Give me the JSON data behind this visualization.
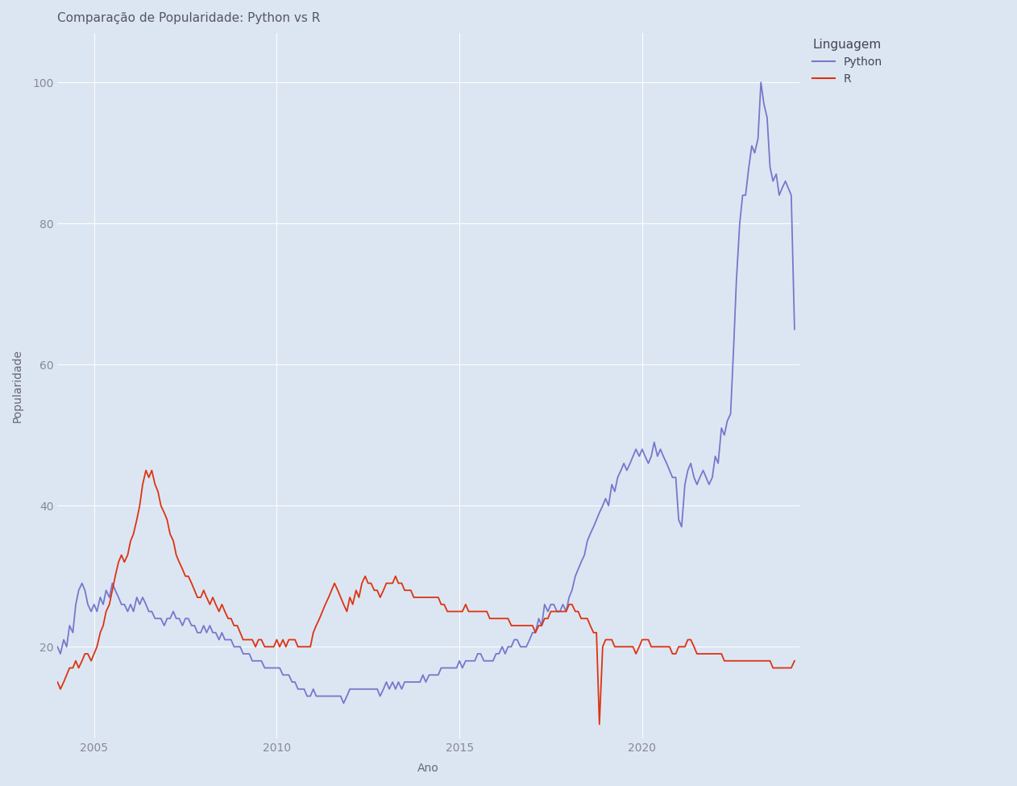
{
  "title": "Comparação de Popularidade: Python vs R",
  "xlabel": "Ano",
  "ylabel": "Popularidade",
  "legend_title": "Linguagem",
  "plot_bg_color": "#dce6f2",
  "fig_bg_color": "#dce6f2",
  "python_color": "#7777cc",
  "r_color": "#dd3311",
  "xlim": [
    2004.0,
    2024.3
  ],
  "ylim": [
    7,
    107
  ],
  "xticks": [
    2005,
    2010,
    2015,
    2020
  ],
  "yticks": [
    20,
    40,
    60,
    80,
    100
  ],
  "python_data": [
    [
      2004.0,
      20
    ],
    [
      2004.08,
      19
    ],
    [
      2004.17,
      21
    ],
    [
      2004.25,
      20
    ],
    [
      2004.33,
      23
    ],
    [
      2004.42,
      22
    ],
    [
      2004.5,
      26
    ],
    [
      2004.58,
      28
    ],
    [
      2004.67,
      29
    ],
    [
      2004.75,
      28
    ],
    [
      2004.83,
      26
    ],
    [
      2004.92,
      25
    ],
    [
      2005.0,
      26
    ],
    [
      2005.08,
      25
    ],
    [
      2005.17,
      27
    ],
    [
      2005.25,
      26
    ],
    [
      2005.33,
      28
    ],
    [
      2005.42,
      27
    ],
    [
      2005.5,
      29
    ],
    [
      2005.58,
      28
    ],
    [
      2005.67,
      27
    ],
    [
      2005.75,
      26
    ],
    [
      2005.83,
      26
    ],
    [
      2005.92,
      25
    ],
    [
      2006.0,
      26
    ],
    [
      2006.08,
      25
    ],
    [
      2006.17,
      27
    ],
    [
      2006.25,
      26
    ],
    [
      2006.33,
      27
    ],
    [
      2006.42,
      26
    ],
    [
      2006.5,
      25
    ],
    [
      2006.58,
      25
    ],
    [
      2006.67,
      24
    ],
    [
      2006.75,
      24
    ],
    [
      2006.83,
      24
    ],
    [
      2006.92,
      23
    ],
    [
      2007.0,
      24
    ],
    [
      2007.08,
      24
    ],
    [
      2007.17,
      25
    ],
    [
      2007.25,
      24
    ],
    [
      2007.33,
      24
    ],
    [
      2007.42,
      23
    ],
    [
      2007.5,
      24
    ],
    [
      2007.58,
      24
    ],
    [
      2007.67,
      23
    ],
    [
      2007.75,
      23
    ],
    [
      2007.83,
      22
    ],
    [
      2007.92,
      22
    ],
    [
      2008.0,
      23
    ],
    [
      2008.08,
      22
    ],
    [
      2008.17,
      23
    ],
    [
      2008.25,
      22
    ],
    [
      2008.33,
      22
    ],
    [
      2008.42,
      21
    ],
    [
      2008.5,
      22
    ],
    [
      2008.58,
      21
    ],
    [
      2008.67,
      21
    ],
    [
      2008.75,
      21
    ],
    [
      2008.83,
      20
    ],
    [
      2008.92,
      20
    ],
    [
      2009.0,
      20
    ],
    [
      2009.08,
      19
    ],
    [
      2009.17,
      19
    ],
    [
      2009.25,
      19
    ],
    [
      2009.33,
      18
    ],
    [
      2009.42,
      18
    ],
    [
      2009.5,
      18
    ],
    [
      2009.58,
      18
    ],
    [
      2009.67,
      17
    ],
    [
      2009.75,
      17
    ],
    [
      2009.83,
      17
    ],
    [
      2009.92,
      17
    ],
    [
      2010.0,
      17
    ],
    [
      2010.08,
      17
    ],
    [
      2010.17,
      16
    ],
    [
      2010.25,
      16
    ],
    [
      2010.33,
      16
    ],
    [
      2010.42,
      15
    ],
    [
      2010.5,
      15
    ],
    [
      2010.58,
      14
    ],
    [
      2010.67,
      14
    ],
    [
      2010.75,
      14
    ],
    [
      2010.83,
      13
    ],
    [
      2010.92,
      13
    ],
    [
      2011.0,
      14
    ],
    [
      2011.08,
      13
    ],
    [
      2011.17,
      13
    ],
    [
      2011.25,
      13
    ],
    [
      2011.33,
      13
    ],
    [
      2011.42,
      13
    ],
    [
      2011.5,
      13
    ],
    [
      2011.58,
      13
    ],
    [
      2011.67,
      13
    ],
    [
      2011.75,
      13
    ],
    [
      2011.83,
      12
    ],
    [
      2011.92,
      13
    ],
    [
      2012.0,
      14
    ],
    [
      2012.08,
      14
    ],
    [
      2012.17,
      14
    ],
    [
      2012.25,
      14
    ],
    [
      2012.33,
      14
    ],
    [
      2012.42,
      14
    ],
    [
      2012.5,
      14
    ],
    [
      2012.58,
      14
    ],
    [
      2012.67,
      14
    ],
    [
      2012.75,
      14
    ],
    [
      2012.83,
      13
    ],
    [
      2012.92,
      14
    ],
    [
      2013.0,
      15
    ],
    [
      2013.08,
      14
    ],
    [
      2013.17,
      15
    ],
    [
      2013.25,
      14
    ],
    [
      2013.33,
      15
    ],
    [
      2013.42,
      14
    ],
    [
      2013.5,
      15
    ],
    [
      2013.58,
      15
    ],
    [
      2013.67,
      15
    ],
    [
      2013.75,
      15
    ],
    [
      2013.83,
      15
    ],
    [
      2013.92,
      15
    ],
    [
      2014.0,
      16
    ],
    [
      2014.08,
      15
    ],
    [
      2014.17,
      16
    ],
    [
      2014.25,
      16
    ],
    [
      2014.33,
      16
    ],
    [
      2014.42,
      16
    ],
    [
      2014.5,
      17
    ],
    [
      2014.58,
      17
    ],
    [
      2014.67,
      17
    ],
    [
      2014.75,
      17
    ],
    [
      2014.83,
      17
    ],
    [
      2014.92,
      17
    ],
    [
      2015.0,
      18
    ],
    [
      2015.08,
      17
    ],
    [
      2015.17,
      18
    ],
    [
      2015.25,
      18
    ],
    [
      2015.33,
      18
    ],
    [
      2015.42,
      18
    ],
    [
      2015.5,
      19
    ],
    [
      2015.58,
      19
    ],
    [
      2015.67,
      18
    ],
    [
      2015.75,
      18
    ],
    [
      2015.83,
      18
    ],
    [
      2015.92,
      18
    ],
    [
      2016.0,
      19
    ],
    [
      2016.08,
      19
    ],
    [
      2016.17,
      20
    ],
    [
      2016.25,
      19
    ],
    [
      2016.33,
      20
    ],
    [
      2016.42,
      20
    ],
    [
      2016.5,
      21
    ],
    [
      2016.58,
      21
    ],
    [
      2016.67,
      20
    ],
    [
      2016.75,
      20
    ],
    [
      2016.83,
      20
    ],
    [
      2016.92,
      21
    ],
    [
      2017.0,
      22
    ],
    [
      2017.08,
      22
    ],
    [
      2017.17,
      24
    ],
    [
      2017.25,
      23
    ],
    [
      2017.33,
      26
    ],
    [
      2017.42,
      25
    ],
    [
      2017.5,
      26
    ],
    [
      2017.58,
      26
    ],
    [
      2017.67,
      25
    ],
    [
      2017.75,
      25
    ],
    [
      2017.83,
      26
    ],
    [
      2017.92,
      25
    ],
    [
      2018.0,
      27
    ],
    [
      2018.08,
      28
    ],
    [
      2018.17,
      30
    ],
    [
      2018.25,
      31
    ],
    [
      2018.33,
      32
    ],
    [
      2018.42,
      33
    ],
    [
      2018.5,
      35
    ],
    [
      2018.58,
      36
    ],
    [
      2018.67,
      37
    ],
    [
      2018.75,
      38
    ],
    [
      2018.83,
      39
    ],
    [
      2018.92,
      40
    ],
    [
      2019.0,
      41
    ],
    [
      2019.08,
      40
    ],
    [
      2019.17,
      43
    ],
    [
      2019.25,
      42
    ],
    [
      2019.33,
      44
    ],
    [
      2019.42,
      45
    ],
    [
      2019.5,
      46
    ],
    [
      2019.58,
      45
    ],
    [
      2019.67,
      46
    ],
    [
      2019.75,
      47
    ],
    [
      2019.83,
      48
    ],
    [
      2019.92,
      47
    ],
    [
      2020.0,
      48
    ],
    [
      2020.08,
      47
    ],
    [
      2020.17,
      46
    ],
    [
      2020.25,
      47
    ],
    [
      2020.33,
      49
    ],
    [
      2020.42,
      47
    ],
    [
      2020.5,
      48
    ],
    [
      2020.58,
      47
    ],
    [
      2020.67,
      46
    ],
    [
      2020.75,
      45
    ],
    [
      2020.83,
      44
    ],
    [
      2020.92,
      44
    ],
    [
      2021.0,
      38
    ],
    [
      2021.08,
      37
    ],
    [
      2021.17,
      43
    ],
    [
      2021.25,
      45
    ],
    [
      2021.33,
      46
    ],
    [
      2021.42,
      44
    ],
    [
      2021.5,
      43
    ],
    [
      2021.58,
      44
    ],
    [
      2021.67,
      45
    ],
    [
      2021.75,
      44
    ],
    [
      2021.83,
      43
    ],
    [
      2021.92,
      44
    ],
    [
      2022.0,
      47
    ],
    [
      2022.08,
      46
    ],
    [
      2022.17,
      51
    ],
    [
      2022.25,
      50
    ],
    [
      2022.33,
      52
    ],
    [
      2022.42,
      53
    ],
    [
      2022.5,
      62
    ],
    [
      2022.58,
      72
    ],
    [
      2022.67,
      80
    ],
    [
      2022.75,
      84
    ],
    [
      2022.83,
      84
    ],
    [
      2022.92,
      88
    ],
    [
      2023.0,
      91
    ],
    [
      2023.08,
      90
    ],
    [
      2023.17,
      92
    ],
    [
      2023.25,
      100
    ],
    [
      2023.33,
      97
    ],
    [
      2023.42,
      95
    ],
    [
      2023.5,
      88
    ],
    [
      2023.58,
      86
    ],
    [
      2023.67,
      87
    ],
    [
      2023.75,
      84
    ],
    [
      2023.83,
      85
    ],
    [
      2023.92,
      86
    ],
    [
      2024.0,
      85
    ],
    [
      2024.08,
      84
    ],
    [
      2024.17,
      65
    ]
  ],
  "r_data": [
    [
      2004.0,
      15
    ],
    [
      2004.08,
      14
    ],
    [
      2004.17,
      15
    ],
    [
      2004.25,
      16
    ],
    [
      2004.33,
      17
    ],
    [
      2004.42,
      17
    ],
    [
      2004.5,
      18
    ],
    [
      2004.58,
      17
    ],
    [
      2004.67,
      18
    ],
    [
      2004.75,
      19
    ],
    [
      2004.83,
      19
    ],
    [
      2004.92,
      18
    ],
    [
      2005.0,
      19
    ],
    [
      2005.08,
      20
    ],
    [
      2005.17,
      22
    ],
    [
      2005.25,
      23
    ],
    [
      2005.33,
      25
    ],
    [
      2005.42,
      26
    ],
    [
      2005.5,
      28
    ],
    [
      2005.58,
      30
    ],
    [
      2005.67,
      32
    ],
    [
      2005.75,
      33
    ],
    [
      2005.83,
      32
    ],
    [
      2005.92,
      33
    ],
    [
      2006.0,
      35
    ],
    [
      2006.08,
      36
    ],
    [
      2006.17,
      38
    ],
    [
      2006.25,
      40
    ],
    [
      2006.33,
      43
    ],
    [
      2006.42,
      45
    ],
    [
      2006.5,
      44
    ],
    [
      2006.58,
      45
    ],
    [
      2006.67,
      43
    ],
    [
      2006.75,
      42
    ],
    [
      2006.83,
      40
    ],
    [
      2006.92,
      39
    ],
    [
      2007.0,
      38
    ],
    [
      2007.08,
      36
    ],
    [
      2007.17,
      35
    ],
    [
      2007.25,
      33
    ],
    [
      2007.33,
      32
    ],
    [
      2007.42,
      31
    ],
    [
      2007.5,
      30
    ],
    [
      2007.58,
      30
    ],
    [
      2007.67,
      29
    ],
    [
      2007.75,
      28
    ],
    [
      2007.83,
      27
    ],
    [
      2007.92,
      27
    ],
    [
      2008.0,
      28
    ],
    [
      2008.08,
      27
    ],
    [
      2008.17,
      26
    ],
    [
      2008.25,
      27
    ],
    [
      2008.33,
      26
    ],
    [
      2008.42,
      25
    ],
    [
      2008.5,
      26
    ],
    [
      2008.58,
      25
    ],
    [
      2008.67,
      24
    ],
    [
      2008.75,
      24
    ],
    [
      2008.83,
      23
    ],
    [
      2008.92,
      23
    ],
    [
      2009.0,
      22
    ],
    [
      2009.08,
      21
    ],
    [
      2009.17,
      21
    ],
    [
      2009.25,
      21
    ],
    [
      2009.33,
      21
    ],
    [
      2009.42,
      20
    ],
    [
      2009.5,
      21
    ],
    [
      2009.58,
      21
    ],
    [
      2009.67,
      20
    ],
    [
      2009.75,
      20
    ],
    [
      2009.83,
      20
    ],
    [
      2009.92,
      20
    ],
    [
      2010.0,
      21
    ],
    [
      2010.08,
      20
    ],
    [
      2010.17,
      21
    ],
    [
      2010.25,
      20
    ],
    [
      2010.33,
      21
    ],
    [
      2010.42,
      21
    ],
    [
      2010.5,
      21
    ],
    [
      2010.58,
      20
    ],
    [
      2010.67,
      20
    ],
    [
      2010.75,
      20
    ],
    [
      2010.83,
      20
    ],
    [
      2010.92,
      20
    ],
    [
      2011.0,
      22
    ],
    [
      2011.08,
      23
    ],
    [
      2011.17,
      24
    ],
    [
      2011.25,
      25
    ],
    [
      2011.33,
      26
    ],
    [
      2011.42,
      27
    ],
    [
      2011.5,
      28
    ],
    [
      2011.58,
      29
    ],
    [
      2011.67,
      28
    ],
    [
      2011.75,
      27
    ],
    [
      2011.83,
      26
    ],
    [
      2011.92,
      25
    ],
    [
      2012.0,
      27
    ],
    [
      2012.08,
      26
    ],
    [
      2012.17,
      28
    ],
    [
      2012.25,
      27
    ],
    [
      2012.33,
      29
    ],
    [
      2012.42,
      30
    ],
    [
      2012.5,
      29
    ],
    [
      2012.58,
      29
    ],
    [
      2012.67,
      28
    ],
    [
      2012.75,
      28
    ],
    [
      2012.83,
      27
    ],
    [
      2012.92,
      28
    ],
    [
      2013.0,
      29
    ],
    [
      2013.08,
      29
    ],
    [
      2013.17,
      29
    ],
    [
      2013.25,
      30
    ],
    [
      2013.33,
      29
    ],
    [
      2013.42,
      29
    ],
    [
      2013.5,
      28
    ],
    [
      2013.58,
      28
    ],
    [
      2013.67,
      28
    ],
    [
      2013.75,
      27
    ],
    [
      2013.83,
      27
    ],
    [
      2013.92,
      27
    ],
    [
      2014.0,
      27
    ],
    [
      2014.08,
      27
    ],
    [
      2014.17,
      27
    ],
    [
      2014.25,
      27
    ],
    [
      2014.33,
      27
    ],
    [
      2014.42,
      27
    ],
    [
      2014.5,
      26
    ],
    [
      2014.58,
      26
    ],
    [
      2014.67,
      25
    ],
    [
      2014.75,
      25
    ],
    [
      2014.83,
      25
    ],
    [
      2014.92,
      25
    ],
    [
      2015.0,
      25
    ],
    [
      2015.08,
      25
    ],
    [
      2015.17,
      26
    ],
    [
      2015.25,
      25
    ],
    [
      2015.33,
      25
    ],
    [
      2015.42,
      25
    ],
    [
      2015.5,
      25
    ],
    [
      2015.58,
      25
    ],
    [
      2015.67,
      25
    ],
    [
      2015.75,
      25
    ],
    [
      2015.83,
      24
    ],
    [
      2015.92,
      24
    ],
    [
      2016.0,
      24
    ],
    [
      2016.08,
      24
    ],
    [
      2016.17,
      24
    ],
    [
      2016.25,
      24
    ],
    [
      2016.33,
      24
    ],
    [
      2016.42,
      23
    ],
    [
      2016.5,
      23
    ],
    [
      2016.58,
      23
    ],
    [
      2016.67,
      23
    ],
    [
      2016.75,
      23
    ],
    [
      2016.83,
      23
    ],
    [
      2016.92,
      23
    ],
    [
      2017.0,
      23
    ],
    [
      2017.08,
      22
    ],
    [
      2017.17,
      23
    ],
    [
      2017.25,
      23
    ],
    [
      2017.33,
      24
    ],
    [
      2017.42,
      24
    ],
    [
      2017.5,
      25
    ],
    [
      2017.58,
      25
    ],
    [
      2017.67,
      25
    ],
    [
      2017.75,
      25
    ],
    [
      2017.83,
      25
    ],
    [
      2017.92,
      25
    ],
    [
      2018.0,
      26
    ],
    [
      2018.08,
      26
    ],
    [
      2018.17,
      25
    ],
    [
      2018.25,
      25
    ],
    [
      2018.33,
      24
    ],
    [
      2018.42,
      24
    ],
    [
      2018.5,
      24
    ],
    [
      2018.58,
      23
    ],
    [
      2018.67,
      22
    ],
    [
      2018.75,
      22
    ],
    [
      2018.83,
      9
    ],
    [
      2018.92,
      20
    ],
    [
      2019.0,
      21
    ],
    [
      2019.08,
      21
    ],
    [
      2019.17,
      21
    ],
    [
      2019.25,
      20
    ],
    [
      2019.33,
      20
    ],
    [
      2019.42,
      20
    ],
    [
      2019.5,
      20
    ],
    [
      2019.58,
      20
    ],
    [
      2019.67,
      20
    ],
    [
      2019.75,
      20
    ],
    [
      2019.83,
      19
    ],
    [
      2019.92,
      20
    ],
    [
      2020.0,
      21
    ],
    [
      2020.08,
      21
    ],
    [
      2020.17,
      21
    ],
    [
      2020.25,
      20
    ],
    [
      2020.33,
      20
    ],
    [
      2020.42,
      20
    ],
    [
      2020.5,
      20
    ],
    [
      2020.58,
      20
    ],
    [
      2020.67,
      20
    ],
    [
      2020.75,
      20
    ],
    [
      2020.83,
      19
    ],
    [
      2020.92,
      19
    ],
    [
      2021.0,
      20
    ],
    [
      2021.08,
      20
    ],
    [
      2021.17,
      20
    ],
    [
      2021.25,
      21
    ],
    [
      2021.33,
      21
    ],
    [
      2021.42,
      20
    ],
    [
      2021.5,
      19
    ],
    [
      2021.58,
      19
    ],
    [
      2021.67,
      19
    ],
    [
      2021.75,
      19
    ],
    [
      2021.83,
      19
    ],
    [
      2021.92,
      19
    ],
    [
      2022.0,
      19
    ],
    [
      2022.08,
      19
    ],
    [
      2022.17,
      19
    ],
    [
      2022.25,
      18
    ],
    [
      2022.33,
      18
    ],
    [
      2022.42,
      18
    ],
    [
      2022.5,
      18
    ],
    [
      2022.58,
      18
    ],
    [
      2022.67,
      18
    ],
    [
      2022.75,
      18
    ],
    [
      2022.83,
      18
    ],
    [
      2022.92,
      18
    ],
    [
      2023.0,
      18
    ],
    [
      2023.08,
      18
    ],
    [
      2023.17,
      18
    ],
    [
      2023.25,
      18
    ],
    [
      2023.33,
      18
    ],
    [
      2023.42,
      18
    ],
    [
      2023.5,
      18
    ],
    [
      2023.58,
      17
    ],
    [
      2023.67,
      17
    ],
    [
      2023.75,
      17
    ],
    [
      2023.83,
      17
    ],
    [
      2023.92,
      17
    ],
    [
      2024.0,
      17
    ],
    [
      2024.08,
      17
    ],
    [
      2024.17,
      18
    ]
  ]
}
